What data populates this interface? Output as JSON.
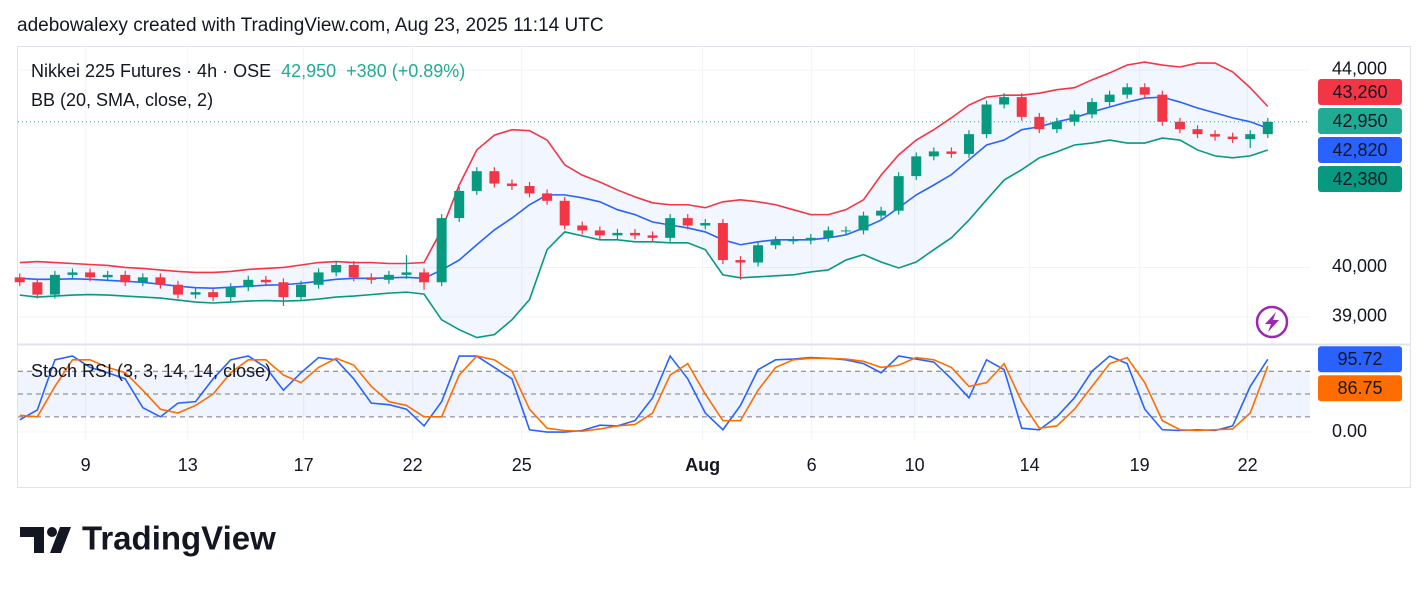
{
  "attribution": "adebowalexy created with TradingView.com, Aug 23, 2025 11:14 UTC",
  "brand": "TradingView",
  "chart_data": [
    {
      "type": "candlestick",
      "title": "Nikkei 225 Futures · 4h · OSE",
      "last_price": {
        "value": 42950,
        "label": "42,950"
      },
      "change": "+380 (+0.89%)",
      "indicator": "BB (20, SMA, close, 2)",
      "up_color": "#089981",
      "down_color": "#f23645",
      "last_color": "#22ab94",
      "open": [
        39800,
        39700,
        39450,
        39850,
        39900,
        39800,
        39850,
        39700,
        39800,
        39650,
        39450,
        39500,
        39400,
        39600,
        39750,
        39700,
        39400,
        39650,
        39900,
        40050,
        39800,
        39750,
        39850,
        39900,
        39700,
        41000,
        41550,
        41950,
        41700,
        41650,
        41500,
        41350,
        40850,
        40750,
        40650,
        40700,
        40650,
        40600,
        41000,
        40850,
        40900,
        40150,
        40100,
        40450,
        40550,
        40550,
        40600,
        40750,
        40750,
        41050,
        41150,
        41850,
        42250,
        42350,
        42300,
        42700,
        43300,
        43450,
        43050,
        42800,
        42950,
        43100,
        43350,
        43500,
        43650,
        43500,
        42950,
        42800,
        42700,
        42650,
        42600,
        42700
      ],
      "high": [
        39880,
        39780,
        39930,
        39980,
        39980,
        39930,
        39930,
        39880,
        39880,
        39730,
        39580,
        39580,
        39680,
        39830,
        39830,
        39780,
        39730,
        39980,
        40130,
        40130,
        39880,
        39930,
        40250,
        39980,
        41080,
        41630,
        42030,
        42030,
        41780,
        41730,
        41580,
        41430,
        40930,
        40830,
        40780,
        40780,
        40730,
        41080,
        41080,
        40980,
        40980,
        40230,
        40530,
        40630,
        40630,
        40680,
        40830,
        40830,
        41130,
        41230,
        41930,
        42330,
        42430,
        42430,
        42780,
        43380,
        43530,
        43530,
        43130,
        43030,
        43180,
        43430,
        43580,
        43730,
        43730,
        43580,
        43030,
        42880,
        42780,
        42730,
        42780,
        43030
      ],
      "low": [
        39620,
        39370,
        39370,
        39770,
        39720,
        39720,
        39620,
        39620,
        39570,
        39370,
        39370,
        39320,
        39320,
        39520,
        39620,
        39220,
        39320,
        39570,
        39820,
        39720,
        39670,
        39670,
        39770,
        39550,
        39620,
        40920,
        41470,
        41620,
        41570,
        41420,
        41270,
        40770,
        40670,
        40570,
        40570,
        40570,
        40520,
        40520,
        40770,
        40770,
        40070,
        39750,
        40020,
        40370,
        40470,
        40470,
        40520,
        40670,
        40670,
        40970,
        41070,
        41770,
        42170,
        42220,
        42220,
        42620,
        43220,
        42970,
        42720,
        42720,
        42870,
        43020,
        43270,
        43420,
        43420,
        42870,
        42720,
        42620,
        42570,
        42520,
        42420,
        42620
      ],
      "close": [
        39700,
        39450,
        39850,
        39900,
        39800,
        39850,
        39700,
        39800,
        39650,
        39450,
        39500,
        39400,
        39600,
        39750,
        39700,
        39400,
        39650,
        39900,
        40050,
        39800,
        39750,
        39850,
        39900,
        39700,
        41000,
        41550,
        41950,
        41700,
        41650,
        41500,
        41350,
        40850,
        40750,
        40650,
        40700,
        40650,
        40600,
        41000,
        40850,
        40900,
        40150,
        40100,
        40450,
        40550,
        40550,
        40600,
        40750,
        40750,
        41050,
        41150,
        41850,
        42250,
        42350,
        42300,
        42700,
        43300,
        43450,
        43050,
        42800,
        42950,
        43100,
        43350,
        43500,
        43650,
        43500,
        42950,
        42800,
        42700,
        42650,
        42600,
        42700,
        42950
      ],
      "series": [
        {
          "color": "#f23645",
          "last_label": {
            "value": 43260,
            "label": "43,260"
          },
          "values": [
            40100,
            40120,
            40100,
            40080,
            40060,
            40040,
            40000,
            39980,
            39950,
            39920,
            39900,
            39900,
            39920,
            39960,
            39980,
            40000,
            40050,
            40100,
            40120,
            40100,
            40100,
            40080,
            40080,
            40100,
            40760,
            41670,
            42380,
            42680,
            42790,
            42770,
            42580,
            42080,
            41870,
            41730,
            41570,
            41430,
            41310,
            41270,
            41270,
            41210,
            41330,
            41370,
            41330,
            41270,
            41170,
            41070,
            41070,
            41170,
            41370,
            41870,
            42280,
            42580,
            42790,
            43030,
            43290,
            43450,
            43490,
            43490,
            43530,
            43600,
            43640,
            43800,
            43940,
            44100,
            44160,
            44100,
            44060,
            44140,
            44140,
            43960,
            43640,
            43260
          ]
        },
        {
          "color": "#2962ff",
          "last_label": {
            "value": 42820,
            "label": "42,820"
          },
          "values": [
            39780,
            39760,
            39760,
            39770,
            39760,
            39740,
            39720,
            39700,
            39660,
            39620,
            39590,
            39580,
            39600,
            39620,
            39640,
            39650,
            39680,
            39720,
            39760,
            39780,
            39780,
            39790,
            39800,
            39780,
            39950,
            40150,
            40460,
            40760,
            41000,
            41270,
            41470,
            41470,
            41410,
            41330,
            41170,
            41070,
            40920,
            40860,
            40800,
            40720,
            40560,
            40460,
            40520,
            40560,
            40560,
            40560,
            40600,
            40660,
            40800,
            40960,
            41210,
            41470,
            41670,
            41880,
            42180,
            42480,
            42580,
            42790,
            42850,
            42950,
            43030,
            43150,
            43250,
            43350,
            43430,
            43450,
            43350,
            43230,
            43130,
            43030,
            42950,
            42820
          ]
        },
        {
          "color": "#089981",
          "last_label": {
            "value": 42380,
            "label": "42,380"
          },
          "values": [
            39440,
            39400,
            39420,
            39440,
            39450,
            39440,
            39420,
            39400,
            39380,
            39340,
            39300,
            39280,
            39300,
            39320,
            39330,
            39320,
            39330,
            39360,
            39400,
            39420,
            39450,
            39480,
            39500,
            39460,
            38940,
            38740,
            38580,
            38640,
            38940,
            39350,
            40360,
            40720,
            40640,
            40560,
            40560,
            40520,
            40520,
            40500,
            40500,
            40360,
            39850,
            39790,
            39810,
            39830,
            39850,
            39910,
            39950,
            40150,
            40260,
            40110,
            39990,
            40110,
            40360,
            40600,
            40960,
            41370,
            41770,
            41980,
            42220,
            42340,
            42480,
            42520,
            42580,
            42520,
            42520,
            42620,
            42580,
            42380,
            42260,
            42220,
            42260,
            42380
          ]
        }
      ],
      "band_fill": "#2962ff",
      "xlim": [
        -0.1,
        73.4
      ],
      "ylim": [
        38470,
        44465
      ],
      "yticks": [
        {
          "value": 39000,
          "label": "39,000"
        },
        {
          "value": 40000,
          "label": "40,000"
        },
        {
          "value": 44000,
          "label": "44,000"
        }
      ],
      "grid": true
    },
    {
      "type": "line",
      "title": "Stoch RSI (3, 3, 14, 14, close)",
      "series": [
        {
          "color": "#2962ff",
          "last_label": {
            "value": 95.72,
            "label": "95.72"
          },
          "values": [
            16,
            29,
            95,
            100,
            85,
            78,
            70,
            32,
            20,
            38,
            40,
            70,
            95,
            100,
            85,
            55,
            78,
            98,
            95,
            70,
            38,
            36,
            30,
            8,
            40,
            100,
            100,
            85,
            70,
            3,
            0,
            0,
            2,
            9,
            8,
            15,
            45,
            100,
            70,
            25,
            3,
            35,
            82,
            95,
            96,
            98,
            97,
            95,
            90,
            78,
            100,
            96,
            92,
            70,
            45,
            95,
            82,
            5,
            3,
            20,
            45,
            80,
            100,
            90,
            30,
            3,
            2,
            3,
            2,
            8,
            60,
            95.72
          ]
        },
        {
          "color": "#ff6d00",
          "last_label": {
            "value": 86.75,
            "label": "86.75"
          },
          "values": [
            22,
            20,
            60,
            95,
            95,
            85,
            78,
            55,
            30,
            25,
            35,
            50,
            78,
            95,
            95,
            75,
            65,
            85,
            97,
            88,
            60,
            40,
            35,
            20,
            20,
            75,
            100,
            95,
            80,
            30,
            5,
            2,
            1,
            4,
            8,
            10,
            25,
            75,
            90,
            50,
            15,
            15,
            55,
            85,
            95,
            97,
            97,
            96,
            93,
            85,
            88,
            98,
            95,
            85,
            60,
            65,
            90,
            40,
            5,
            8,
            30,
            60,
            90,
            98,
            65,
            15,
            3,
            2,
            3,
            4,
            25,
            86.75
          ]
        }
      ],
      "bands": [
        20,
        50,
        80
      ],
      "band_fill": "#2962ff",
      "xlim": [
        -0.1,
        73.4
      ],
      "ylim": [
        -10.5,
        114.5
      ],
      "yticks": [
        {
          "value": 0,
          "label": "0.00"
        }
      ],
      "xticks": [
        {
          "value": 3.75,
          "label": "9"
        },
        {
          "value": 9.56,
          "label": "13"
        },
        {
          "value": 16.15,
          "label": "17"
        },
        {
          "value": 22.35,
          "label": "22"
        },
        {
          "value": 28.56,
          "label": "25"
        },
        {
          "value": 38.85,
          "label": "Aug"
        },
        {
          "value": 45.05,
          "label": "6"
        },
        {
          "value": 50.91,
          "label": "10"
        },
        {
          "value": 57.45,
          "label": "14"
        },
        {
          "value": 63.71,
          "label": "19"
        },
        {
          "value": 69.85,
          "label": "22"
        }
      ],
      "grid": true
    }
  ]
}
